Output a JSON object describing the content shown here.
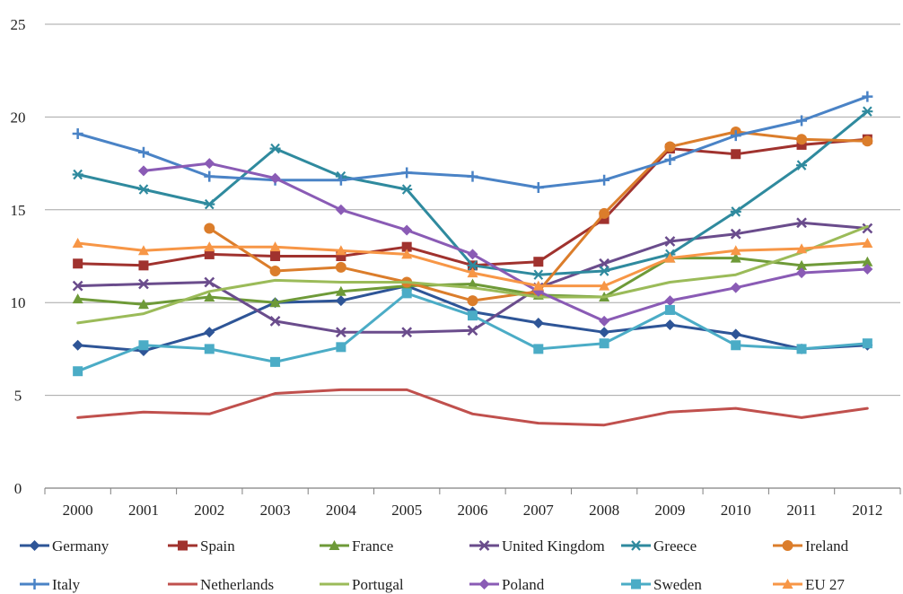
{
  "chart_data": {
    "type": "line",
    "title": "",
    "xlabel": "",
    "ylabel": "",
    "ylim": [
      0,
      25
    ],
    "yticks": [
      "0",
      "5",
      "10",
      "15",
      "20",
      "25"
    ],
    "categories": [
      "2000",
      "2001",
      "2002",
      "2003",
      "2004",
      "2005",
      "2006",
      "2007",
      "2008",
      "2009",
      "2010",
      "2011",
      "2012"
    ],
    "grid": true,
    "legend_position": "bottom",
    "series": [
      {
        "name": "Germany",
        "color": "#2E5597",
        "marker": "diamond",
        "values": [
          7.7,
          7.4,
          8.4,
          10.0,
          10.1,
          10.9,
          9.5,
          8.9,
          8.4,
          8.8,
          8.3,
          7.5,
          7.7
        ]
      },
      {
        "name": "Spain",
        "color": "#A0322E",
        "marker": "square",
        "values": [
          12.1,
          12.0,
          12.6,
          12.5,
          12.5,
          13.0,
          12.0,
          12.2,
          14.5,
          18.3,
          18.0,
          18.5,
          18.8
        ]
      },
      {
        "name": "France",
        "color": "#6E9A38",
        "marker": "triangle",
        "values": [
          10.2,
          9.9,
          10.3,
          10.0,
          10.6,
          10.9,
          11.0,
          10.4,
          10.3,
          12.4,
          12.4,
          12.0,
          12.2
        ]
      },
      {
        "name": "United Kingdom",
        "color": "#6A4C8C",
        "marker": "x",
        "values": [
          10.9,
          11.0,
          11.1,
          9.0,
          8.4,
          8.4,
          8.5,
          10.8,
          12.1,
          13.3,
          13.7,
          14.3,
          14.0
        ]
      },
      {
        "name": "Greece",
        "color": "#2F8A9E",
        "marker": "star",
        "values": [
          16.9,
          16.1,
          15.3,
          18.3,
          16.8,
          16.1,
          12.0,
          11.5,
          11.7,
          12.6,
          14.9,
          17.4,
          20.3
        ]
      },
      {
        "name": "Ireland",
        "color": "#DB7D2B",
        "marker": "circle",
        "values": [
          null,
          null,
          14.0,
          11.7,
          11.9,
          11.1,
          10.1,
          10.6,
          14.8,
          18.4,
          19.2,
          18.8,
          18.7
        ]
      },
      {
        "name": "Italy",
        "color": "#4A83C6",
        "marker": "plus",
        "values": [
          19.1,
          18.1,
          16.8,
          16.6,
          16.6,
          17.0,
          16.8,
          16.2,
          16.6,
          17.7,
          19.0,
          19.8,
          21.1
        ]
      },
      {
        "name": "Netherlands",
        "color": "#C0504D",
        "marker": "none",
        "values": [
          3.8,
          4.1,
          4.0,
          5.1,
          5.3,
          5.3,
          4.0,
          3.5,
          3.4,
          4.1,
          4.3,
          3.8,
          4.3
        ]
      },
      {
        "name": "Portugal",
        "color": "#9BBB59",
        "marker": "none",
        "values": [
          8.9,
          9.4,
          10.6,
          11.2,
          11.1,
          11.1,
          10.8,
          10.3,
          10.3,
          11.1,
          11.5,
          12.7,
          14.1
        ]
      },
      {
        "name": "Poland",
        "color": "#8A5BB5",
        "marker": "diamond",
        "values": [
          null,
          17.1,
          17.5,
          16.7,
          15.0,
          13.9,
          12.6,
          10.6,
          9.0,
          10.1,
          10.8,
          11.6,
          11.8
        ]
      },
      {
        "name": "Sweden",
        "color": "#4BACC6",
        "marker": "square",
        "values": [
          6.3,
          7.7,
          7.5,
          6.8,
          7.6,
          10.5,
          9.3,
          7.5,
          7.8,
          9.6,
          7.7,
          7.5,
          7.8
        ]
      },
      {
        "name": "EU 27",
        "color": "#F79646",
        "marker": "triangle",
        "values": [
          13.2,
          12.8,
          13.0,
          13.0,
          12.8,
          12.6,
          11.6,
          10.9,
          10.9,
          12.4,
          12.8,
          12.9,
          13.2
        ]
      }
    ]
  }
}
